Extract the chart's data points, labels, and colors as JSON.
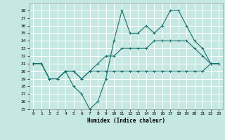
{
  "xlabel": "Humidex (Indice chaleur)",
  "ylabel": "",
  "xlim": [
    -0.5,
    23.5
  ],
  "ylim": [
    25,
    39
  ],
  "yticks": [
    25,
    26,
    27,
    28,
    29,
    30,
    31,
    32,
    33,
    34,
    35,
    36,
    37,
    38
  ],
  "xticks": [
    0,
    1,
    2,
    3,
    4,
    5,
    6,
    7,
    8,
    9,
    10,
    11,
    12,
    13,
    14,
    15,
    16,
    17,
    18,
    19,
    20,
    21,
    22,
    23
  ],
  "bg_color": "#c6e8e2",
  "grid_color": "#ffffff",
  "line_color": "#1a7070",
  "x": [
    0,
    1,
    2,
    3,
    4,
    5,
    6,
    7,
    8,
    9,
    10,
    11,
    12,
    13,
    14,
    15,
    16,
    17,
    18,
    19,
    20,
    21,
    22,
    23
  ],
  "line1": [
    31,
    31,
    29,
    29,
    30,
    28,
    27,
    25,
    26,
    29,
    34,
    38,
    35,
    35,
    36,
    35,
    36,
    38,
    38,
    36,
    34,
    33,
    31,
    31
  ],
  "line2": [
    31,
    31,
    29,
    29,
    30,
    30,
    29,
    30,
    31,
    32,
    32,
    33,
    33,
    33,
    33,
    34,
    34,
    34,
    34,
    34,
    33,
    32,
    31,
    31
  ],
  "line3": [
    31,
    31,
    29,
    29,
    30,
    30,
    29,
    30,
    30,
    30,
    30,
    30,
    30,
    30,
    30,
    30,
    30,
    30,
    30,
    30,
    30,
    30,
    31,
    31
  ]
}
